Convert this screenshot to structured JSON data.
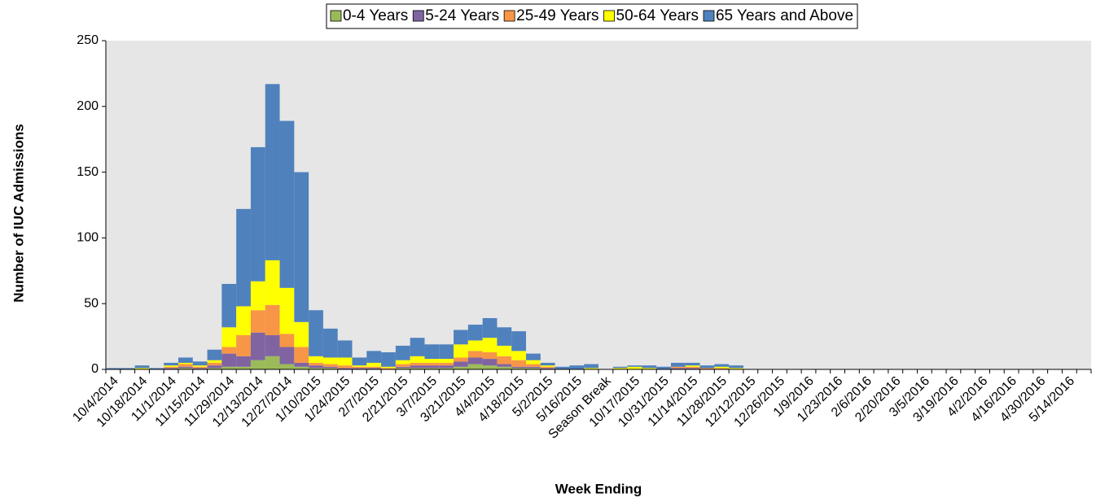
{
  "chart_data": {
    "type": "stacked-bar",
    "x_label": "Week Ending",
    "y_label": "Number of IUC Admissions",
    "categories": [
      "10/4/2014",
      null,
      "10/18/2014",
      null,
      "11/1/2014",
      null,
      "11/15/2014",
      null,
      "11/29/2014",
      null,
      "12/13/2014",
      null,
      "12/27/2014",
      null,
      "1/10/2015",
      null,
      "1/24/2015",
      null,
      "2/7/2015",
      null,
      "2/21/2015",
      null,
      "3/7/2015",
      null,
      "3/21/2015",
      null,
      "4/4/2015",
      null,
      "4/18/2015",
      null,
      "5/2/2015",
      null,
      "5/16/2015",
      null,
      "Season Break",
      null,
      "10/17/2015",
      null,
      "10/31/2015",
      null,
      "11/14/2015",
      null,
      "11/28/2015",
      null,
      "12/12/2015",
      null,
      "12/26/2015",
      null,
      "1/9/2016",
      null,
      "1/23/2016",
      null,
      "2/6/2016",
      null,
      "2/20/2016",
      null,
      "3/5/2016",
      null,
      "3/19/2016",
      null,
      "4/2/2016",
      null,
      "4/16/2016",
      null,
      "4/30/2016",
      null,
      "5/14/2016",
      null
    ],
    "series": [
      {
        "name": "0-4 Years",
        "color": "#9bbb59",
        "values": [
          0,
          0,
          0,
          0,
          0,
          1,
          0,
          1,
          2,
          2,
          7,
          10,
          4,
          2,
          1,
          1,
          0,
          0,
          0,
          0,
          1,
          1,
          1,
          1,
          2,
          4,
          3,
          2,
          1,
          1,
          0,
          0,
          0,
          0,
          0,
          0,
          0,
          0,
          0,
          0,
          0,
          0,
          0,
          0,
          0,
          0,
          0,
          0,
          0,
          0,
          0,
          0,
          0,
          0,
          0,
          0,
          0,
          0,
          0,
          0,
          0,
          0,
          0,
          0,
          0,
          0,
          0,
          0
        ]
      },
      {
        "name": "5-24 Years",
        "color": "#8064a2",
        "values": [
          0,
          0,
          0,
          0,
          1,
          1,
          1,
          2,
          10,
          8,
          21,
          16,
          13,
          3,
          2,
          1,
          1,
          1,
          1,
          0,
          1,
          2,
          2,
          2,
          4,
          5,
          5,
          2,
          1,
          1,
          1,
          0,
          0,
          0,
          0,
          0,
          0,
          0,
          0,
          1,
          1,
          0,
          0,
          0,
          0,
          0,
          0,
          0,
          0,
          0,
          0,
          0,
          0,
          0,
          0,
          0,
          0,
          0,
          0,
          0,
          0,
          0,
          0,
          0,
          0,
          0,
          0,
          0
        ]
      },
      {
        "name": "25-49 Years",
        "color": "#f79646",
        "values": [
          0,
          0,
          0,
          0,
          1,
          2,
          1,
          2,
          5,
          16,
          17,
          23,
          10,
          12,
          2,
          2,
          2,
          1,
          1,
          1,
          2,
          2,
          2,
          2,
          3,
          5,
          5,
          6,
          5,
          2,
          1,
          0,
          0,
          0,
          0,
          0,
          0,
          0,
          0,
          1,
          1,
          1,
          1,
          0,
          0,
          0,
          0,
          0,
          0,
          0,
          0,
          0,
          0,
          0,
          0,
          0,
          0,
          0,
          0,
          0,
          0,
          0,
          0,
          0,
          0,
          0,
          0,
          0
        ]
      },
      {
        "name": "50-64 Years",
        "color": "#ffff00",
        "values": [
          0,
          0,
          1,
          0,
          1,
          1,
          1,
          2,
          15,
          22,
          22,
          34,
          35,
          19,
          5,
          5,
          6,
          1,
          3,
          1,
          3,
          5,
          3,
          3,
          10,
          8,
          11,
          8,
          7,
          3,
          1,
          0,
          0,
          1,
          0,
          1,
          2,
          1,
          0,
          0,
          1,
          0,
          1,
          1,
          0,
          0,
          0,
          0,
          0,
          0,
          0,
          0,
          0,
          0,
          0,
          0,
          0,
          0,
          0,
          0,
          0,
          0,
          0,
          0,
          0,
          0,
          0,
          0
        ]
      },
      {
        "name": "65 Years and Above",
        "color": "#4f81bd",
        "values": [
          1,
          1,
          2,
          1,
          2,
          4,
          3,
          8,
          33,
          74,
          102,
          134,
          127,
          114,
          35,
          22,
          13,
          6,
          9,
          11,
          11,
          14,
          11,
          11,
          11,
          12,
          15,
          14,
          15,
          5,
          2,
          2,
          3,
          3,
          0,
          1,
          1,
          2,
          2,
          3,
          2,
          2,
          2,
          2,
          0,
          0,
          0,
          0,
          0,
          0,
          0,
          0,
          0,
          0,
          0,
          0,
          0,
          0,
          0,
          0,
          0,
          0,
          0,
          0,
          0,
          0,
          0,
          0
        ]
      }
    ],
    "ylim": [
      0,
      250
    ],
    "yticks": [
      0,
      50,
      100,
      150,
      200,
      250
    ]
  }
}
